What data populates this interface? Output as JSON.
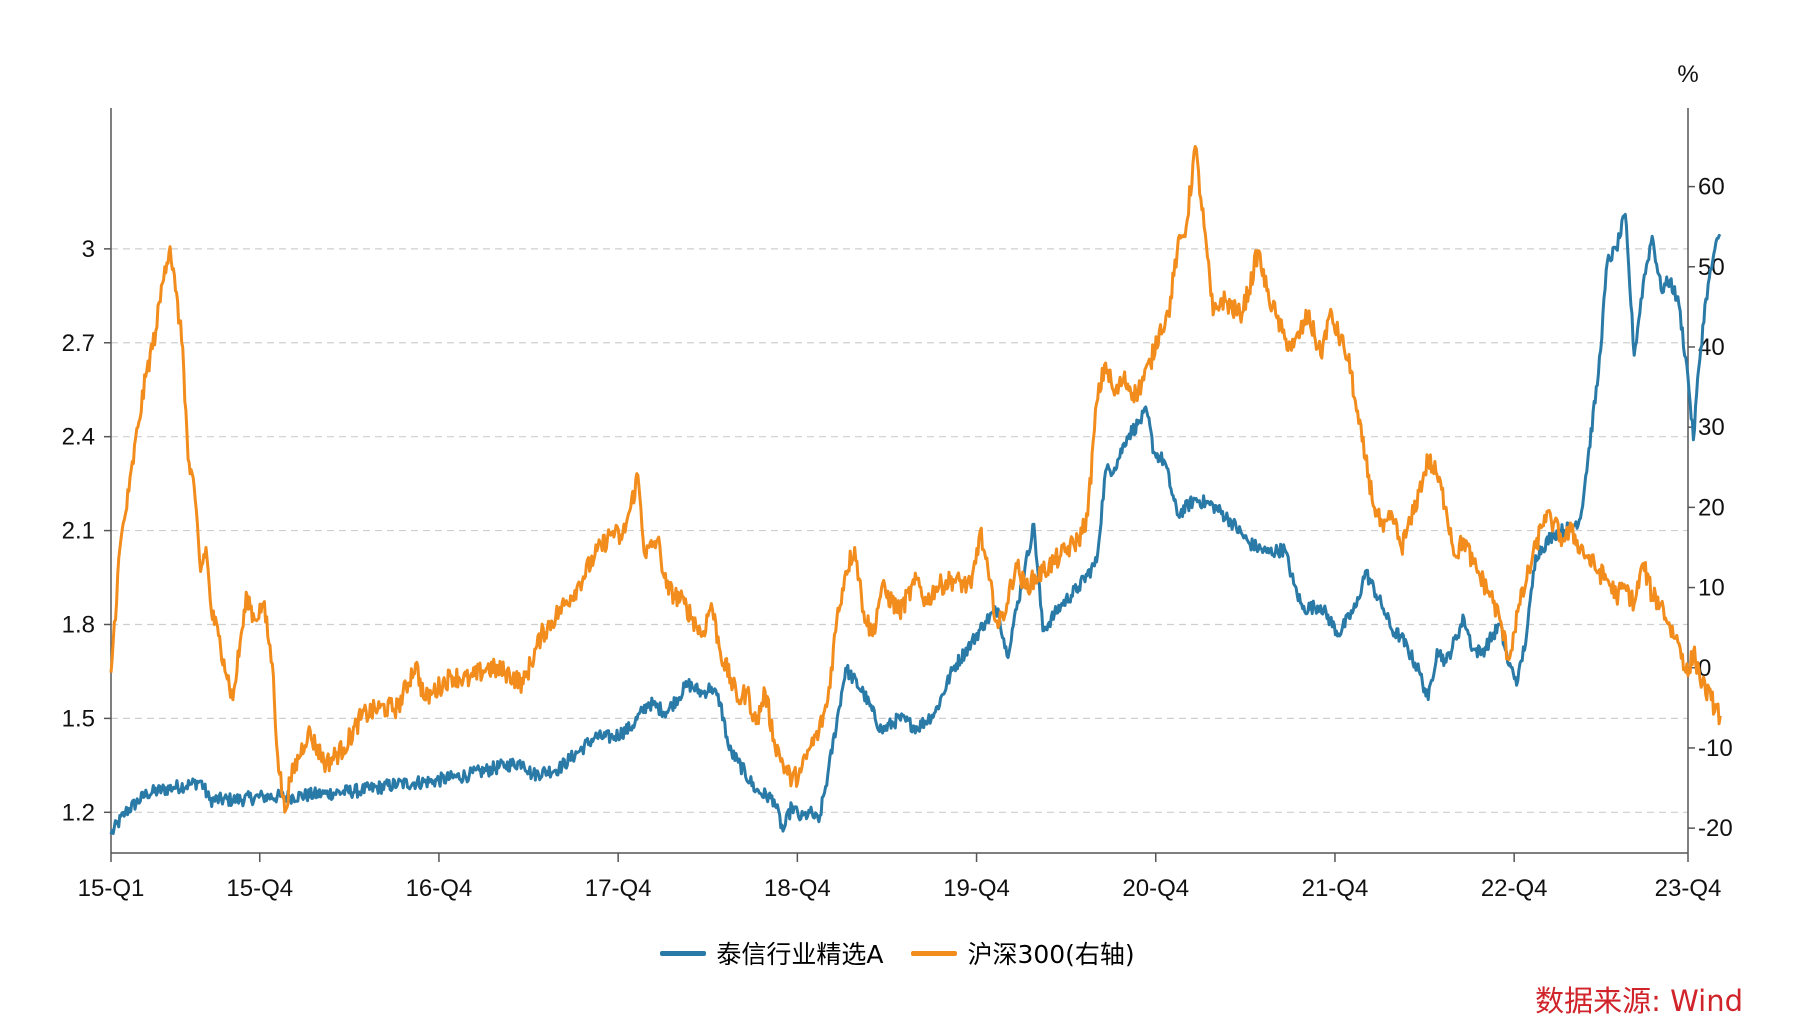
{
  "chart_data": {
    "type": "line",
    "colors": {
      "fund": "#2a7aa8",
      "index": "#f28c1c",
      "grid": "#cfcfcf",
      "source": "#d0232a"
    },
    "x": {
      "tick_labels": [
        "15-Q1",
        "15-Q4",
        "16-Q4",
        "17-Q4",
        "18-Q4",
        "19-Q4",
        "20-Q4",
        "21-Q4",
        "22-Q4",
        "23-Q4"
      ],
      "tick_times": [
        2015.0,
        2015.83,
        2016.83,
        2017.83,
        2018.83,
        2019.83,
        2020.83,
        2021.83,
        2022.83,
        2023.8
      ],
      "range": [
        2015.0,
        2023.8
      ]
    },
    "y_left": {
      "range": [
        1.07,
        3.45
      ],
      "ticks": [
        1.2,
        1.5,
        1.8,
        2.1,
        2.4,
        2.7,
        3
      ],
      "tick_labels": [
        "1.2",
        "1.5",
        "1.8",
        "2.1",
        "2.4",
        "2.7",
        "3"
      ]
    },
    "y_right": {
      "range": [
        -23.1,
        69.8
      ],
      "ticks": [
        -20,
        -10,
        0,
        10,
        20,
        30,
        40,
        50,
        60
      ],
      "tick_labels": [
        "-20",
        "-10",
        "0",
        "10",
        "20",
        "30",
        "40",
        "50",
        "60"
      ],
      "unit": "%"
    },
    "series": [
      {
        "name": "泰信行业精选A",
        "axis": "left",
        "color": "#2a7aa8",
        "points": [
          [
            2015.0,
            1.13
          ],
          [
            2015.08,
            1.2
          ],
          [
            2015.2,
            1.26
          ],
          [
            2015.35,
            1.28
          ],
          [
            2015.45,
            1.29
          ],
          [
            2015.5,
            1.3
          ],
          [
            2015.55,
            1.24
          ],
          [
            2015.7,
            1.24
          ],
          [
            2015.85,
            1.25
          ],
          [
            2016.0,
            1.25
          ],
          [
            2016.2,
            1.26
          ],
          [
            2016.4,
            1.27
          ],
          [
            2016.6,
            1.29
          ],
          [
            2016.8,
            1.3
          ],
          [
            2017.0,
            1.32
          ],
          [
            2017.2,
            1.35
          ],
          [
            2017.3,
            1.36
          ],
          [
            2017.35,
            1.32
          ],
          [
            2017.5,
            1.34
          ],
          [
            2017.6,
            1.39
          ],
          [
            2017.7,
            1.44
          ],
          [
            2017.8,
            1.44
          ],
          [
            2017.9,
            1.47
          ],
          [
            2018.0,
            1.55
          ],
          [
            2018.1,
            1.52
          ],
          [
            2018.22,
            1.61
          ],
          [
            2018.3,
            1.58
          ],
          [
            2018.35,
            1.6
          ],
          [
            2018.4,
            1.55
          ],
          [
            2018.45,
            1.4
          ],
          [
            2018.5,
            1.36
          ],
          [
            2018.6,
            1.27
          ],
          [
            2018.7,
            1.24
          ],
          [
            2018.75,
            1.14
          ],
          [
            2018.8,
            1.22
          ],
          [
            2018.85,
            1.18
          ],
          [
            2018.9,
            1.2
          ],
          [
            2018.95,
            1.17
          ],
          [
            2019.0,
            1.32
          ],
          [
            2019.1,
            1.66
          ],
          [
            2019.2,
            1.58
          ],
          [
            2019.3,
            1.46
          ],
          [
            2019.4,
            1.5
          ],
          [
            2019.5,
            1.47
          ],
          [
            2019.6,
            1.52
          ],
          [
            2019.7,
            1.66
          ],
          [
            2019.8,
            1.74
          ],
          [
            2019.88,
            1.81
          ],
          [
            2019.95,
            1.85
          ],
          [
            2020.0,
            1.7
          ],
          [
            2020.1,
            1.98
          ],
          [
            2020.15,
            2.12
          ],
          [
            2020.2,
            1.78
          ],
          [
            2020.3,
            1.86
          ],
          [
            2020.4,
            1.92
          ],
          [
            2020.5,
            2.0
          ],
          [
            2020.55,
            2.29
          ],
          [
            2020.6,
            2.3
          ],
          [
            2020.67,
            2.4
          ],
          [
            2020.73,
            2.44
          ],
          [
            2020.78,
            2.48
          ],
          [
            2020.82,
            2.35
          ],
          [
            2020.88,
            2.32
          ],
          [
            2020.95,
            2.15
          ],
          [
            2021.05,
            2.2
          ],
          [
            2021.15,
            2.18
          ],
          [
            2021.25,
            2.13
          ],
          [
            2021.35,
            2.06
          ],
          [
            2021.45,
            2.03
          ],
          [
            2021.55,
            2.04
          ],
          [
            2021.6,
            1.93
          ],
          [
            2021.65,
            1.85
          ],
          [
            2021.75,
            1.86
          ],
          [
            2021.85,
            1.77
          ],
          [
            2021.95,
            1.86
          ],
          [
            2022.0,
            1.97
          ],
          [
            2022.1,
            1.85
          ],
          [
            2022.15,
            1.78
          ],
          [
            2022.2,
            1.76
          ],
          [
            2022.3,
            1.65
          ],
          [
            2022.35,
            1.56
          ],
          [
            2022.4,
            1.72
          ],
          [
            2022.45,
            1.68
          ],
          [
            2022.55,
            1.82
          ],
          [
            2022.6,
            1.72
          ],
          [
            2022.65,
            1.71
          ],
          [
            2022.75,
            1.8
          ],
          [
            2022.8,
            1.67
          ],
          [
            2022.85,
            1.62
          ],
          [
            2022.9,
            1.77
          ],
          [
            2022.95,
            2.02
          ],
          [
            2023.05,
            2.09
          ],
          [
            2023.15,
            2.11
          ],
          [
            2023.2,
            2.14
          ],
          [
            2023.3,
            2.6
          ],
          [
            2023.35,
            2.96
          ],
          [
            2023.4,
            3.0
          ],
          [
            2023.45,
            3.11
          ],
          [
            2023.5,
            2.66
          ],
          [
            2023.55,
            2.89
          ],
          [
            2023.6,
            3.04
          ],
          [
            2023.65,
            2.87
          ],
          [
            2023.7,
            2.9
          ],
          [
            2023.75,
            2.82
          ],
          [
            2023.8,
            2.59
          ],
          [
            2023.83,
            2.39
          ],
          [
            2023.86,
            2.62
          ],
          [
            2023.9,
            2.84
          ],
          [
            2023.95,
            3.0
          ],
          [
            2023.98,
            3.04
          ]
        ]
      },
      {
        "name": "沪深300(右轴)",
        "axis": "right",
        "color": "#f28c1c",
        "points": [
          [
            2015.0,
            -0.6
          ],
          [
            2015.05,
            15.0
          ],
          [
            2015.1,
            22.0
          ],
          [
            2015.15,
            30.0
          ],
          [
            2015.2,
            37.0
          ],
          [
            2015.25,
            42.0
          ],
          [
            2015.3,
            50.0
          ],
          [
            2015.33,
            52.5
          ],
          [
            2015.36,
            47.0
          ],
          [
            2015.4,
            40.0
          ],
          [
            2015.43,
            26.0
          ],
          [
            2015.47,
            21.0
          ],
          [
            2015.5,
            12.0
          ],
          [
            2015.53,
            15.0
          ],
          [
            2015.56,
            7.0
          ],
          [
            2015.6,
            4.0
          ],
          [
            2015.63,
            1.0
          ],
          [
            2015.68,
            -4.0
          ],
          [
            2015.72,
            3.0
          ],
          [
            2015.76,
            9.0
          ],
          [
            2015.8,
            6.0
          ],
          [
            2015.85,
            8.0
          ],
          [
            2015.9,
            0.5
          ],
          [
            2015.93,
            -11.0
          ],
          [
            2015.97,
            -18.0
          ],
          [
            2016.0,
            -14.0
          ],
          [
            2016.1,
            -8.0
          ],
          [
            2016.2,
            -12.0
          ],
          [
            2016.3,
            -10.0
          ],
          [
            2016.4,
            -6.0
          ],
          [
            2016.5,
            -5.0
          ],
          [
            2016.6,
            -5.0
          ],
          [
            2016.7,
            0.5
          ],
          [
            2016.75,
            -4.0
          ],
          [
            2016.8,
            -3.0
          ],
          [
            2016.9,
            -1.0
          ],
          [
            2017.0,
            -1.5
          ],
          [
            2017.1,
            0.0
          ],
          [
            2017.2,
            -0.5
          ],
          [
            2017.3,
            -2.0
          ],
          [
            2017.4,
            4.0
          ],
          [
            2017.5,
            7.0
          ],
          [
            2017.6,
            10.0
          ],
          [
            2017.7,
            14.0
          ],
          [
            2017.8,
            17.0
          ],
          [
            2017.85,
            16.0
          ],
          [
            2017.9,
            20.0
          ],
          [
            2017.94,
            24.0
          ],
          [
            2017.98,
            14.0
          ],
          [
            2018.05,
            16.0
          ],
          [
            2018.1,
            10.0
          ],
          [
            2018.2,
            8.0
          ],
          [
            2018.3,
            4.0
          ],
          [
            2018.35,
            8.0
          ],
          [
            2018.4,
            2.0
          ],
          [
            2018.5,
            -4.0
          ],
          [
            2018.55,
            -3.0
          ],
          [
            2018.6,
            -7.0
          ],
          [
            2018.65,
            -3.0
          ],
          [
            2018.7,
            -9.0
          ],
          [
            2018.75,
            -12.0
          ],
          [
            2018.8,
            -14.0
          ],
          [
            2018.85,
            -13.0
          ],
          [
            2018.9,
            -10.0
          ],
          [
            2018.95,
            -8.0
          ],
          [
            2019.0,
            -4.0
          ],
          [
            2019.05,
            6.0
          ],
          [
            2019.1,
            12.0
          ],
          [
            2019.15,
            15.0
          ],
          [
            2019.2,
            7.0
          ],
          [
            2019.25,
            4.0
          ],
          [
            2019.3,
            10.0
          ],
          [
            2019.4,
            7.0
          ],
          [
            2019.5,
            11.0
          ],
          [
            2019.55,
            8.0
          ],
          [
            2019.6,
            10.0
          ],
          [
            2019.7,
            11.0
          ],
          [
            2019.8,
            10.0
          ],
          [
            2019.85,
            17.0
          ],
          [
            2019.9,
            11.0
          ],
          [
            2019.95,
            5.0
          ],
          [
            2020.0,
            8.0
          ],
          [
            2020.05,
            13.0
          ],
          [
            2020.1,
            10.0
          ],
          [
            2020.2,
            12.0
          ],
          [
            2020.3,
            14.0
          ],
          [
            2020.4,
            16.0
          ],
          [
            2020.45,
            19.0
          ],
          [
            2020.5,
            33.0
          ],
          [
            2020.55,
            38.0
          ],
          [
            2020.6,
            34.0
          ],
          [
            2020.65,
            36.0
          ],
          [
            2020.72,
            34.0
          ],
          [
            2020.8,
            38.0
          ],
          [
            2020.85,
            42.0
          ],
          [
            2020.9,
            44.0
          ],
          [
            2020.95,
            52.0
          ],
          [
            2021.0,
            55.0
          ],
          [
            2021.05,
            65.0
          ],
          [
            2021.1,
            55.0
          ],
          [
            2021.15,
            44.0
          ],
          [
            2021.2,
            46.0
          ],
          [
            2021.3,
            44.0
          ],
          [
            2021.35,
            47.0
          ],
          [
            2021.4,
            52.0
          ],
          [
            2021.45,
            47.0
          ],
          [
            2021.5,
            44.0
          ],
          [
            2021.55,
            41.0
          ],
          [
            2021.6,
            40.0
          ],
          [
            2021.68,
            44.0
          ],
          [
            2021.75,
            39.0
          ],
          [
            2021.8,
            44.0
          ],
          [
            2021.88,
            40.0
          ],
          [
            2021.92,
            37.0
          ],
          [
            2021.95,
            32.0
          ],
          [
            2022.0,
            26.0
          ],
          [
            2022.05,
            20.0
          ],
          [
            2022.1,
            17.0
          ],
          [
            2022.15,
            19.0
          ],
          [
            2022.2,
            15.0
          ],
          [
            2022.25,
            18.0
          ],
          [
            2022.3,
            22.0
          ],
          [
            2022.35,
            26.0
          ],
          [
            2022.4,
            24.0
          ],
          [
            2022.45,
            20.0
          ],
          [
            2022.5,
            14.0
          ],
          [
            2022.55,
            16.0
          ],
          [
            2022.6,
            13.0
          ],
          [
            2022.7,
            9.0
          ],
          [
            2022.75,
            6.0
          ],
          [
            2022.8,
            1.0
          ],
          [
            2022.85,
            7.0
          ],
          [
            2022.9,
            11.0
          ],
          [
            2022.95,
            15.0
          ],
          [
            2023.0,
            19.0
          ],
          [
            2023.05,
            18.0
          ],
          [
            2023.1,
            16.0
          ],
          [
            2023.15,
            17.0
          ],
          [
            2023.2,
            15.0
          ],
          [
            2023.3,
            12.0
          ],
          [
            2023.35,
            11.0
          ],
          [
            2023.4,
            9.0
          ],
          [
            2023.45,
            10.0
          ],
          [
            2023.5,
            8.0
          ],
          [
            2023.55,
            13.0
          ],
          [
            2023.6,
            9.0
          ],
          [
            2023.65,
            8.0
          ],
          [
            2023.7,
            5.0
          ],
          [
            2023.75,
            3.0
          ],
          [
            2023.8,
            -1.0
          ],
          [
            2023.83,
            2.0
          ],
          [
            2023.88,
            -2.0
          ],
          [
            2023.93,
            -4.0
          ],
          [
            2023.98,
            -6.0
          ]
        ]
      }
    ],
    "legend": [
      "泰信行业精选A",
      "沪深300(右轴)"
    ],
    "grid": true
  },
  "source_label": "数据来源: Wind"
}
